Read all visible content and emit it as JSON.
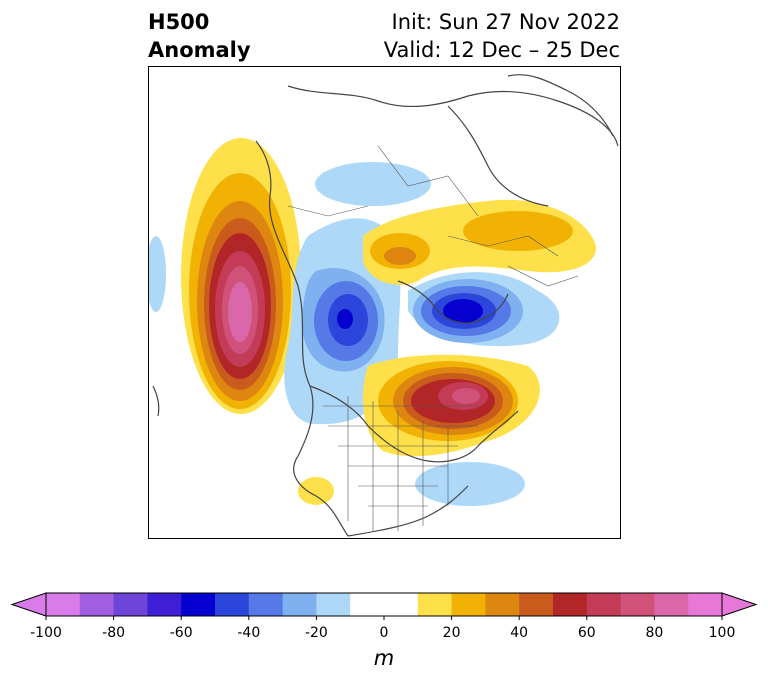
{
  "header": {
    "variable": "H500",
    "field": "Anomaly",
    "init": "Init: Sun 27 Nov 2022",
    "valid": "Valid: 12 Dec – 25 Dec"
  },
  "colorbar": {
    "unit": "m",
    "tick_labels": [
      "-100",
      "-80",
      "-60",
      "-40",
      "-20",
      "0",
      "20",
      "40",
      "60",
      "80",
      "100"
    ],
    "bins": [
      {
        "range": [
          -100,
          -90
        ],
        "color": "#d97be8"
      },
      {
        "range": [
          -90,
          -80
        ],
        "color": "#a05ee0"
      },
      {
        "range": [
          -80,
          -70
        ],
        "color": "#6f44d8"
      },
      {
        "range": [
          -70,
          -60
        ],
        "color": "#3f1fd6"
      },
      {
        "range": [
          -60,
          -50
        ],
        "color": "#0500d0"
      },
      {
        "range": [
          -50,
          -40
        ],
        "color": "#2c46dc"
      },
      {
        "range": [
          -40,
          -30
        ],
        "color": "#5579e6"
      },
      {
        "range": [
          -30,
          -20
        ],
        "color": "#7fb0f0"
      },
      {
        "range": [
          -20,
          -10
        ],
        "color": "#aed8f8"
      },
      {
        "range": [
          -10,
          10
        ],
        "color": "#ffffff"
      },
      {
        "range": [
          10,
          20
        ],
        "color": "#fde04a"
      },
      {
        "range": [
          20,
          30
        ],
        "color": "#f2b203"
      },
      {
        "range": [
          30,
          40
        ],
        "color": "#de8710"
      },
      {
        "range": [
          40,
          50
        ],
        "color": "#c95c1c"
      },
      {
        "range": [
          50,
          60
        ],
        "color": "#b32627"
      },
      {
        "range": [
          60,
          70
        ],
        "color": "#c33b56"
      },
      {
        "range": [
          70,
          80
        ],
        "color": "#d0527a"
      },
      {
        "range": [
          80,
          90
        ],
        "color": "#d967a9"
      },
      {
        "range": [
          90,
          100
        ],
        "color": "#e878d8"
      }
    ],
    "extend_low_color": "#d97be8",
    "extend_high_color": "#e878d8"
  }
}
